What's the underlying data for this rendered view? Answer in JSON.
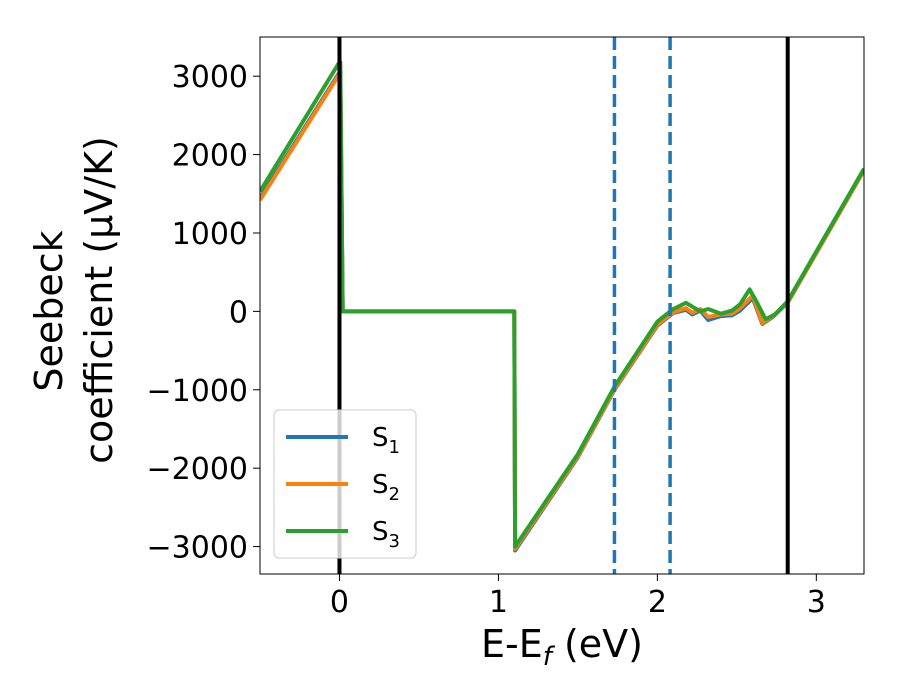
{
  "chart_data": {
    "type": "line",
    "xlabel": "E-E",
    "xlabel_sub": "f",
    "xlabel_unit": " (eV)",
    "ylabel_line1": "Seebeck",
    "ylabel_line2": "coefficient  (μV/K)",
    "xlim": [
      -0.5,
      3.3
    ],
    "ylim": [
      -3350,
      3500
    ],
    "xticks": [
      0,
      1,
      2,
      3
    ],
    "xtick_labels": [
      "0",
      "1",
      "2",
      "3"
    ],
    "yticks": [
      3000,
      2000,
      1000,
      0,
      -1000,
      -2000,
      -3000
    ],
    "ytick_labels": [
      "3000",
      "2000",
      "1000",
      "0",
      "−1000",
      "−2000",
      "−3000"
    ],
    "grid": false,
    "legend_position": "lower-left",
    "vlines": [
      {
        "x": 0,
        "style": "solid",
        "color": "#000000"
      },
      {
        "x": 2.82,
        "style": "solid",
        "color": "#000000"
      },
      {
        "x": 1.73,
        "style": "dashed",
        "color": "#1f77b4"
      },
      {
        "x": 2.08,
        "style": "dashed",
        "color": "#1f77b4"
      }
    ],
    "series": [
      {
        "name": "S",
        "sub": "1",
        "color": "#1f77b4",
        "points": [
          [
            -0.5,
            1440
          ],
          [
            0,
            3050
          ],
          [
            0.005,
            3050
          ],
          [
            0.02,
            0
          ],
          [
            1.1,
            0
          ],
          [
            1.105,
            -3050
          ],
          [
            1.5,
            -1860
          ],
          [
            1.73,
            -1000
          ],
          [
            2.0,
            -180
          ],
          [
            2.1,
            -20
          ],
          [
            2.18,
            20
          ],
          [
            2.22,
            -40
          ],
          [
            2.27,
            10
          ],
          [
            2.32,
            -110
          ],
          [
            2.4,
            -60
          ],
          [
            2.47,
            -50
          ],
          [
            2.52,
            10
          ],
          [
            2.6,
            170
          ],
          [
            2.66,
            -160
          ],
          [
            2.72,
            -80
          ],
          [
            2.82,
            110
          ],
          [
            3.3,
            1800
          ]
        ]
      },
      {
        "name": "S",
        "sub": "2",
        "color": "#ff7f0e",
        "points": [
          [
            -0.5,
            1420
          ],
          [
            0,
            3030
          ],
          [
            0.005,
            3030
          ],
          [
            0.02,
            0
          ],
          [
            1.1,
            0
          ],
          [
            1.105,
            -3030
          ],
          [
            1.5,
            -1850
          ],
          [
            1.73,
            -990
          ],
          [
            2.0,
            -170
          ],
          [
            2.1,
            -10
          ],
          [
            2.18,
            40
          ],
          [
            2.22,
            -20
          ],
          [
            2.27,
            30
          ],
          [
            2.32,
            -70
          ],
          [
            2.4,
            -40
          ],
          [
            2.47,
            -30
          ],
          [
            2.52,
            40
          ],
          [
            2.6,
            200
          ],
          [
            2.66,
            -150
          ],
          [
            2.72,
            -70
          ],
          [
            2.82,
            110
          ],
          [
            3.3,
            1800
          ]
        ]
      },
      {
        "name": "S",
        "sub": "3",
        "color": "#2ca02c",
        "points": [
          [
            -0.5,
            1530
          ],
          [
            0,
            3180
          ],
          [
            0.005,
            3180
          ],
          [
            0.02,
            0
          ],
          [
            1.1,
            0
          ],
          [
            1.105,
            -3000
          ],
          [
            1.5,
            -1820
          ],
          [
            1.73,
            -960
          ],
          [
            2.0,
            -130
          ],
          [
            2.1,
            30
          ],
          [
            2.18,
            110
          ],
          [
            2.22,
            60
          ],
          [
            2.27,
            0
          ],
          [
            2.32,
            30
          ],
          [
            2.4,
            -30
          ],
          [
            2.47,
            10
          ],
          [
            2.52,
            90
          ],
          [
            2.58,
            280
          ],
          [
            2.63,
            100
          ],
          [
            2.68,
            -100
          ],
          [
            2.74,
            -40
          ],
          [
            2.82,
            130
          ],
          [
            3.3,
            1820
          ]
        ]
      }
    ]
  }
}
